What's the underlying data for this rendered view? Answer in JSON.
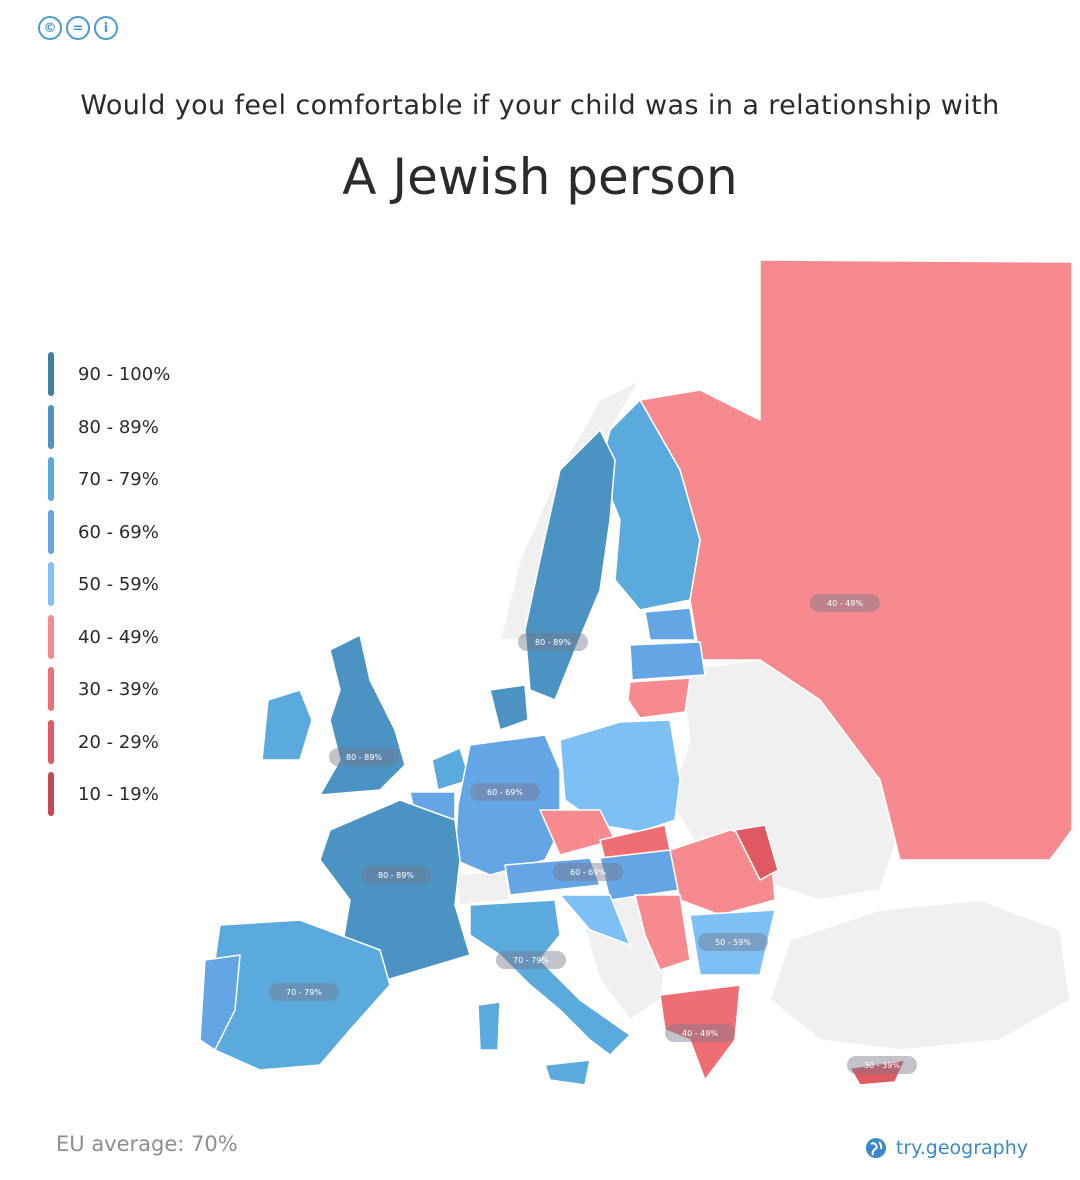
{
  "header": {
    "license_icons": [
      "cc-icon",
      "nd-icon",
      "by-icon"
    ],
    "question": "Would you feel comfortable if your child was in a relationship  with",
    "subject": "A Jewish person"
  },
  "legend": [
    {
      "label": "90 - 100%",
      "color": "#3f7fa5"
    },
    {
      "label": "80 - 89%",
      "color": "#4a93c2"
    },
    {
      "label": "70 - 79%",
      "color": "#5aaadd"
    },
    {
      "label": "60 - 69%",
      "color": "#64a5e6"
    },
    {
      "label": "50 - 59%",
      "color": "#7cc0f5"
    },
    {
      "label": "40 - 49%",
      "color": "#f78a8e"
    },
    {
      "label": "30 - 39%",
      "color": "#ef6e74"
    },
    {
      "label": "20 - 29%",
      "color": "#de5a60"
    },
    {
      "label": "10 - 19%",
      "color": "#c9474e"
    }
  ],
  "map_labels": [
    {
      "text": "40 - 49%",
      "region": "Russia"
    },
    {
      "text": "80 - 89%",
      "region": "Sweden"
    },
    {
      "text": "80 - 89%",
      "region": "United Kingdom"
    },
    {
      "text": "60 - 69%",
      "region": "Germany"
    },
    {
      "text": "80 - 89%",
      "region": "France"
    },
    {
      "text": "60 - 69%",
      "region": "Austria"
    },
    {
      "text": "70 - 79%",
      "region": "Italy"
    },
    {
      "text": "70 - 79%",
      "region": "Spain"
    },
    {
      "text": "50 - 59%",
      "region": "Bulgaria"
    },
    {
      "text": "40 - 49%",
      "region": "Greece"
    },
    {
      "text": "30 - 39%",
      "region": "Cyprus"
    }
  ],
  "colors": {
    "no_data": "#f0f0f0",
    "land_outline": "#ffffff"
  },
  "footer": {
    "eu_average": "EU average: 70%",
    "source": "try.geography",
    "source_icon": "globe-icon"
  }
}
